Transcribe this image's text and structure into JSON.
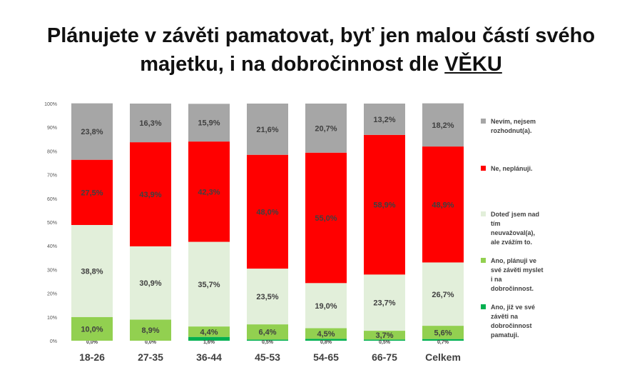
{
  "title_line1": "Plánujete v závěti pamatovat, byť jen malou částí svého",
  "title_line2_prefix": "majetku, i na dobročinnost dle ",
  "title_line2_emph": "VĚKU",
  "chart_data": {
    "type": "bar",
    "stacked": true,
    "categories": [
      "18-26",
      "27-35",
      "36-44",
      "45-53",
      "54-65",
      "66-75",
      "Celkem"
    ],
    "y_ticks": [
      "0%",
      "10%",
      "20%",
      "30%",
      "40%",
      "50%",
      "60%",
      "70%",
      "80%",
      "90%",
      "100%"
    ],
    "ylim": [
      0,
      100
    ],
    "grid": false,
    "legend_position": "right",
    "series": [
      {
        "name": "Ano, již ve své závěti na dobročinnost pamatuji.",
        "color": "#00b050",
        "values": [
          0.0,
          0.0,
          1.6,
          0.5,
          0.8,
          0.5,
          0.7
        ],
        "labels": [
          "0,0%",
          "0,0%",
          "1,6%",
          "0,5%",
          "0,8%",
          "0,5%",
          "0,7%"
        ]
      },
      {
        "name": "Ano, plánuji ve své závěti myslet i na dobročinnost.",
        "color": "#92d050",
        "values": [
          10.0,
          8.9,
          4.4,
          6.4,
          4.5,
          3.7,
          5.6
        ],
        "labels": [
          "10,0%",
          "8,9%",
          "4,4%",
          "6,4%",
          "4,5%",
          "3,7%",
          "5,6%"
        ]
      },
      {
        "name": "Doteď jsem nad tím neuvažoval(a), ale zvážím to.",
        "color": "#e2efda",
        "values": [
          38.8,
          30.9,
          35.7,
          23.5,
          19.0,
          23.7,
          26.7
        ],
        "labels": [
          "38,8%",
          "30,9%",
          "35,7%",
          "23,5%",
          "19,0%",
          "23,7%",
          "26,7%"
        ]
      },
      {
        "name": "Ne, neplánuji.",
        "color": "#ff0000",
        "values": [
          27.5,
          43.9,
          42.3,
          48.0,
          55.0,
          58.9,
          48.9
        ],
        "labels": [
          "27,5%",
          "43,9%",
          "42,3%",
          "48,0%",
          "55,0%",
          "58,9%",
          "48,9%"
        ]
      },
      {
        "name": "Nevím, nejsem rozhodnut(a).",
        "color": "#a6a6a6",
        "values": [
          23.8,
          16.3,
          15.9,
          21.6,
          20.7,
          13.2,
          18.2
        ],
        "labels": [
          "23,8%",
          "16,3%",
          "15,9%",
          "21,6%",
          "20,7%",
          "13,2%",
          "18,2%"
        ]
      }
    ],
    "legend": [
      {
        "lines": [
          "Nevím, nejsem",
          "rozhodnut(a)."
        ],
        "color": "#a6a6a6"
      },
      {
        "lines": [
          "Ne, neplánuji."
        ],
        "color": "#ff0000"
      },
      {
        "lines": [
          "Doteď jsem nad",
          "tím",
          "neuvažoval(a),",
          "ale zvážím to."
        ],
        "color": "#e2efda"
      },
      {
        "lines": [
          "Ano, plánuji ve",
          "své závěti myslet",
          "i na",
          "dobročinnost."
        ],
        "color": "#92d050"
      },
      {
        "lines": [
          "Ano, již ve své",
          "závěti na",
          "dobročinnost",
          "pamatuji."
        ],
        "color": "#00b050"
      }
    ]
  }
}
